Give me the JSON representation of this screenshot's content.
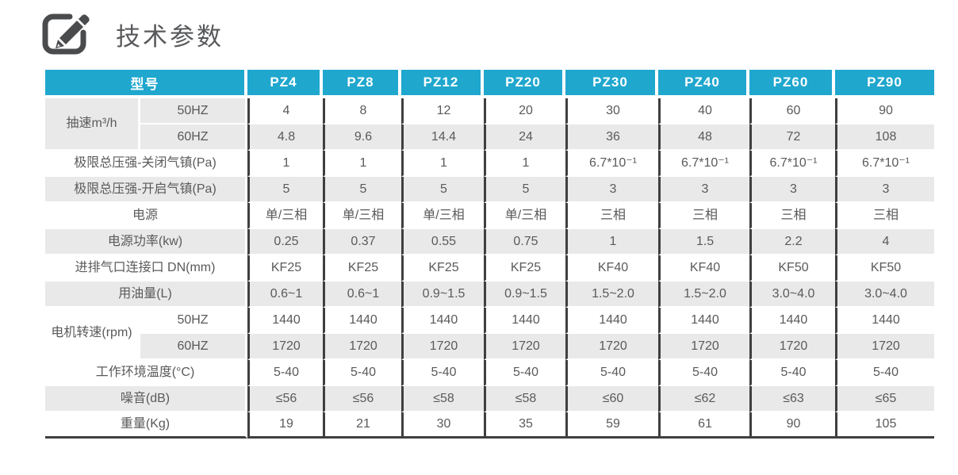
{
  "page": {
    "title": "技术参数",
    "title_icon": "edit-pencil-icon"
  },
  "colors": {
    "header_bg": "#1fa7ce",
    "header_text": "#ffffff",
    "row_alt_bg": "#e9e9e9",
    "border_dark": "#3f3f3f",
    "body_text": "#5a5a5a",
    "title_text": "#58595b"
  },
  "table": {
    "corner_label": "型号",
    "models": [
      "PZ4",
      "PZ8",
      "PZ12",
      "PZ20",
      "PZ30",
      "PZ40",
      "PZ60",
      "PZ90"
    ],
    "rows": [
      {
        "group": "抽速m³/h",
        "groupSpan": 2,
        "sub": "50HZ",
        "values": [
          "4",
          "8",
          "12",
          "20",
          "30",
          "40",
          "60",
          "90"
        ]
      },
      {
        "sub": "60HZ",
        "values": [
          "4.8",
          "9.6",
          "14.4",
          "24",
          "36",
          "48",
          "72",
          "108"
        ]
      },
      {
        "label": "极限总压强-关闭气镇(Pa)",
        "values": [
          "1",
          "1",
          "1",
          "1",
          "6.7*10⁻¹",
          "6.7*10⁻¹",
          "6.7*10⁻¹",
          "6.7*10⁻¹"
        ]
      },
      {
        "label": "极限总压强-开启气镇(Pa)",
        "values": [
          "5",
          "5",
          "5",
          "5",
          "3",
          "3",
          "3",
          "3"
        ]
      },
      {
        "label": "电源",
        "values": [
          "单/三相",
          "单/三相",
          "单/三相",
          "单/三相",
          "三相",
          "三相",
          "三相",
          "三相"
        ]
      },
      {
        "label": "电源功率(kw)",
        "values": [
          "0.25",
          "0.37",
          "0.55",
          "0.75",
          "1",
          "1.5",
          "2.2",
          "4"
        ]
      },
      {
        "label": "进排气口连接口 DN(mm)",
        "values": [
          "KF25",
          "KF25",
          "KF25",
          "KF25",
          "KF40",
          "KF40",
          "KF50",
          "KF50"
        ]
      },
      {
        "label": "用油量(L)",
        "values": [
          "0.6~1",
          "0.6~1",
          "0.9~1.5",
          "0.9~1.5",
          "1.5~2.0",
          "1.5~2.0",
          "3.0~4.0",
          "3.0~4.0"
        ]
      },
      {
        "group": "电机转速(rpm)",
        "groupSpan": 2,
        "sub": "50HZ",
        "values": [
          "1440",
          "1440",
          "1440",
          "1440",
          "1440",
          "1440",
          "1440",
          "1440"
        ]
      },
      {
        "sub": "60HZ",
        "values": [
          "1720",
          "1720",
          "1720",
          "1720",
          "1720",
          "1720",
          "1720",
          "1720"
        ]
      },
      {
        "label": "工作环境温度(°C)",
        "values": [
          "5-40",
          "5-40",
          "5-40",
          "5-40",
          "5-40",
          "5-40",
          "5-40",
          "5-40"
        ]
      },
      {
        "label": "噪音(dB)",
        "values": [
          "≤56",
          "≤56",
          "≤58",
          "≤58",
          "≤60",
          "≤62",
          "≤63",
          "≤65"
        ]
      },
      {
        "label": "重量(Kg)",
        "values": [
          "19",
          "21",
          "30",
          "35",
          "59",
          "61",
          "90",
          "105"
        ]
      }
    ]
  }
}
